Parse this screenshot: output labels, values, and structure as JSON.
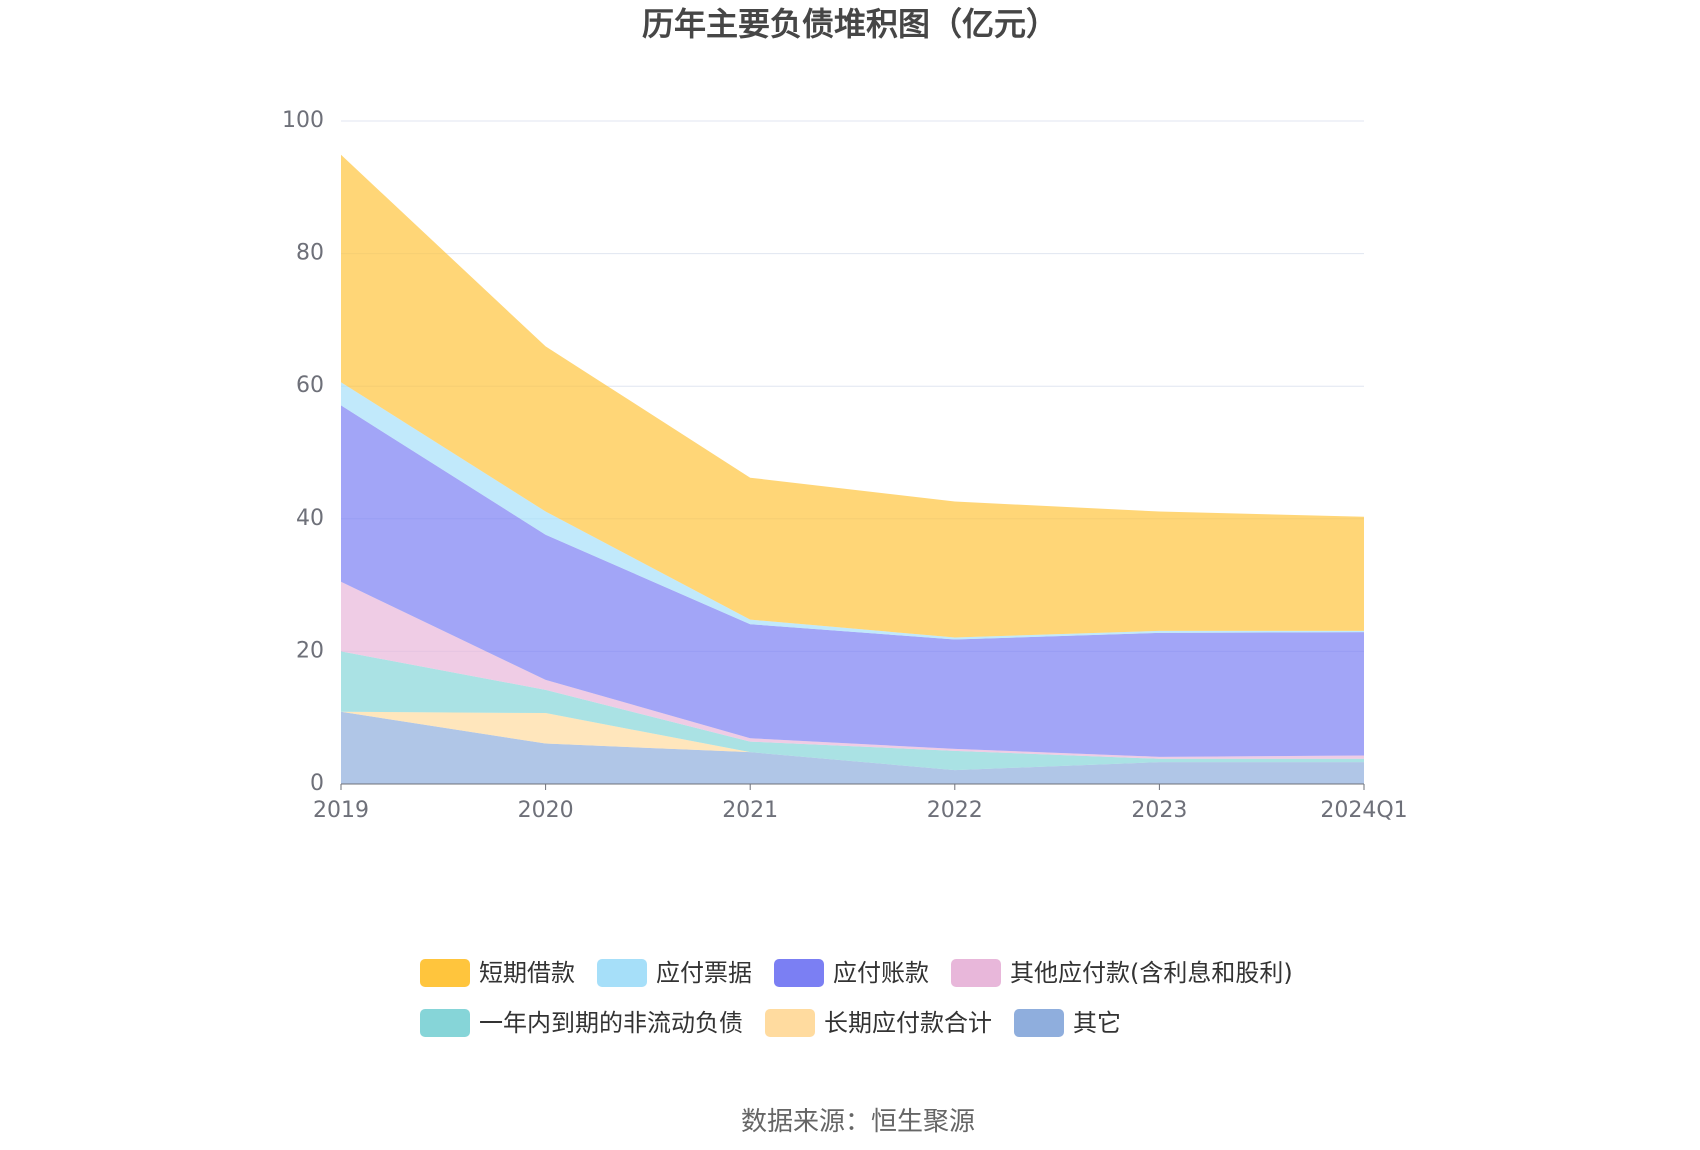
{
  "source": "数据来源：恒生聚源",
  "chart_data": {
    "type": "area",
    "stacked": true,
    "title": "历年主要负债堆积图（亿元）",
    "x": [
      "2019",
      "2020",
      "2021",
      "2022",
      "2023",
      "2024Q1"
    ],
    "ylim": [
      0,
      100
    ],
    "yticks": [
      0,
      20,
      40,
      60,
      80,
      100
    ],
    "grid": true,
    "legend_position": "bottom",
    "series": [
      {
        "name": "短期借款",
        "color": "#FFC53D",
        "values": [
          34.3,
          24.9,
          21.4,
          20.5,
          18.0,
          17.2
        ]
      },
      {
        "name": "应付票据",
        "color": "#A6DFF9",
        "values": [
          3.5,
          3.5,
          0.7,
          0.3,
          0.3,
          0.2
        ]
      },
      {
        "name": "应付账款",
        "color": "#7B7FF3",
        "values": [
          26.6,
          21.9,
          17.2,
          16.5,
          18.7,
          18.6
        ]
      },
      {
        "name": "其他应付款(含利息和股利)",
        "color": "#E8B7DA",
        "values": [
          10.5,
          1.5,
          0.5,
          0.3,
          0.3,
          0.5
        ]
      },
      {
        "name": "一年内到期的非流动负债",
        "color": "#86D5D8",
        "values": [
          9.1,
          3.5,
          1.6,
          2.9,
          0.5,
          0.5
        ]
      },
      {
        "name": "长期应付款合计",
        "color": "#FFDB9F",
        "values": [
          0.0,
          4.6,
          0.0,
          0.0,
          0.0,
          0.0
        ]
      },
      {
        "name": "其它",
        "color": "#8FAEDD",
        "values": [
          10.9,
          6.1,
          4.8,
          2.1,
          3.3,
          3.3
        ]
      }
    ]
  }
}
